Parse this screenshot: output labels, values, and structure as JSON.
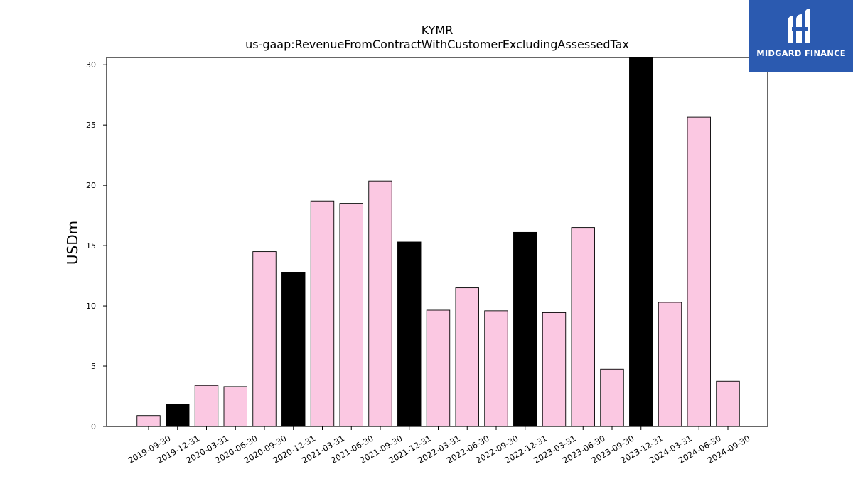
{
  "chart_data": {
    "type": "bar",
    "title": "KYMR",
    "subtitle": "us-gaap:RevenueFromContractWithCustomerExcludingAssessedTax",
    "xlabel": "",
    "ylabel": "USDm",
    "ylim": [
      0,
      30.6
    ],
    "yticks": [
      0,
      5,
      10,
      15,
      20,
      25,
      30
    ],
    "grid": false,
    "categories": [
      "2019-09-30",
      "2019-12-31",
      "2020-03-31",
      "2020-06-30",
      "2020-09-30",
      "2020-12-31",
      "2021-03-31",
      "2021-06-30",
      "2021-09-30",
      "2021-12-31",
      "2022-03-31",
      "2022-06-30",
      "2022-09-30",
      "2022-12-31",
      "2023-03-31",
      "2023-06-30",
      "2023-09-30",
      "2023-12-31",
      "2024-03-31",
      "2024-06-30",
      "2024-09-30"
    ],
    "values": [
      0.9,
      1.8,
      3.4,
      3.3,
      14.5,
      12.75,
      18.7,
      18.5,
      20.35,
      15.3,
      9.65,
      11.5,
      9.6,
      16.1,
      9.45,
      16.5,
      4.75,
      30.6,
      10.3,
      25.65,
      3.75
    ],
    "bar_colors": [
      "#fbc8e2",
      "#000000",
      "#fbc8e2",
      "#fbc8e2",
      "#fbc8e2",
      "#000000",
      "#fbc8e2",
      "#fbc8e2",
      "#fbc8e2",
      "#000000",
      "#fbc8e2",
      "#fbc8e2",
      "#fbc8e2",
      "#000000",
      "#fbc8e2",
      "#fbc8e2",
      "#fbc8e2",
      "#000000",
      "#fbc8e2",
      "#fbc8e2",
      "#fbc8e2"
    ],
    "edge_color": "#000000"
  },
  "logo": {
    "text": "MIDGARD FINANCE",
    "background": "#2b5ab0"
  }
}
